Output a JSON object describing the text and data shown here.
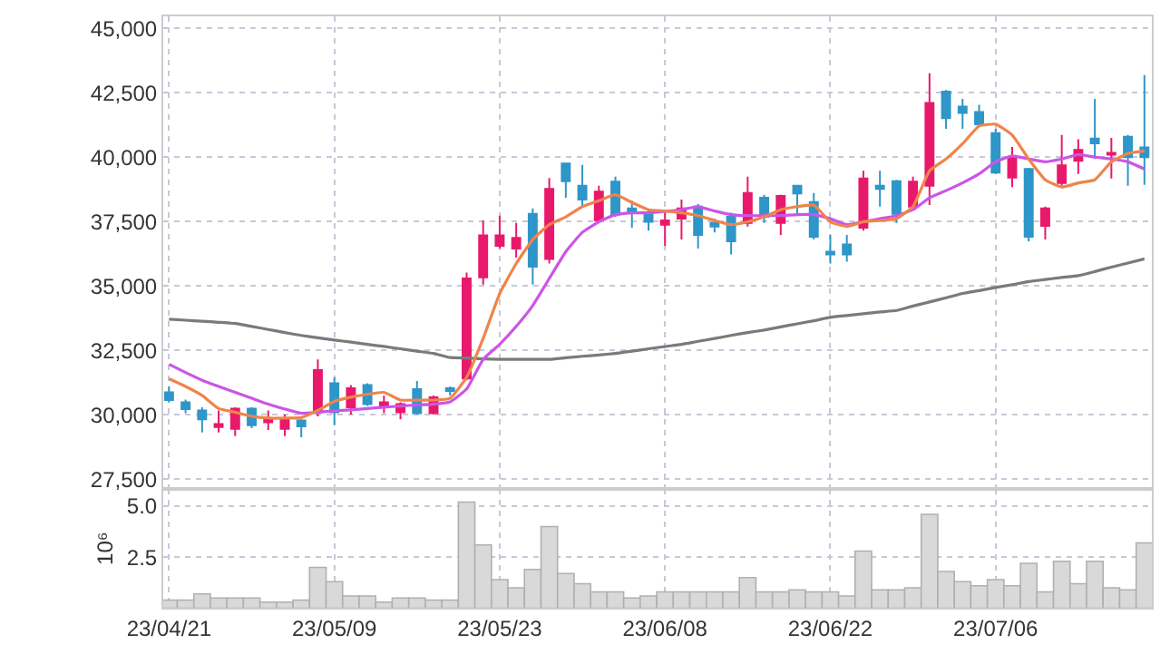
{
  "chart_data": [
    {
      "type": "candlestick",
      "tick_labels": "y",
      "grid": true,
      "ylim": [
        27130,
        45460
      ],
      "categories": [
        null,
        null,
        null,
        null,
        null,
        null,
        null,
        null,
        null,
        null,
        null,
        null,
        null,
        null,
        null,
        null,
        null,
        null,
        null,
        null,
        null,
        null,
        null,
        null,
        null,
        null,
        null,
        null,
        null,
        null,
        null,
        null,
        null,
        null,
        null,
        null,
        null,
        null,
        null,
        null,
        null,
        null,
        null,
        null,
        null,
        null,
        null,
        null,
        null,
        null,
        null,
        null,
        null,
        null,
        null,
        null,
        null,
        null,
        null,
        null
      ],
      "yticks": [
        {
          "value": 27500,
          "label": "27,500"
        },
        {
          "value": 30000,
          "label": "30,000"
        },
        {
          "value": 32500,
          "label": "32,500"
        },
        {
          "value": 35000,
          "label": "35,000"
        },
        {
          "value": 37500,
          "label": "37,500"
        },
        {
          "value": 40000,
          "label": "40,000"
        },
        {
          "value": 42500,
          "label": "42,500"
        },
        {
          "value": 45000,
          "label": "45,000"
        }
      ],
      "ohlc": [
        [
          30870,
          31100,
          30480,
          30570
        ],
        [
          30480,
          30590,
          30060,
          30220
        ],
        [
          30170,
          30290,
          29310,
          29820
        ],
        [
          29520,
          30170,
          29310,
          29640
        ],
        [
          29450,
          30290,
          29170,
          30240
        ],
        [
          30240,
          30290,
          29480,
          29590
        ],
        [
          29710,
          30170,
          29410,
          29820
        ],
        [
          29450,
          30010,
          29170,
          29820
        ],
        [
          29780,
          29820,
          29130,
          29550
        ],
        [
          30100,
          32150,
          29940,
          31730
        ],
        [
          31220,
          31450,
          29590,
          30100
        ],
        [
          30290,
          31150,
          30010,
          31030
        ],
        [
          31150,
          31220,
          30340,
          30410
        ],
        [
          30290,
          30750,
          30060,
          30480
        ],
        [
          30100,
          30480,
          29820,
          30410
        ],
        [
          30990,
          31310,
          30010,
          30060
        ],
        [
          30060,
          30750,
          30010,
          30680
        ],
        [
          31030,
          31100,
          30750,
          30920
        ],
        [
          31410,
          35520,
          31340,
          35290
        ],
        [
          35330,
          37540,
          35050,
          36960
        ],
        [
          36560,
          37730,
          36450,
          36960
        ],
        [
          36450,
          37450,
          36100,
          36870
        ],
        [
          37800,
          38010,
          35050,
          35750
        ],
        [
          36050,
          39190,
          35870,
          38770
        ],
        [
          39750,
          39750,
          38420,
          39070
        ],
        [
          38890,
          39700,
          38080,
          38350
        ],
        [
          37540,
          38890,
          37470,
          38660
        ],
        [
          39050,
          39240,
          37680,
          37770
        ],
        [
          38010,
          38310,
          37260,
          37890
        ],
        [
          37840,
          37960,
          37150,
          37490
        ],
        [
          37380,
          37840,
          36560,
          37540
        ],
        [
          37610,
          38350,
          36800,
          38010
        ],
        [
          38080,
          38190,
          36450,
          36980
        ],
        [
          37450,
          37610,
          37080,
          37310
        ],
        [
          37680,
          37840,
          36220,
          36730
        ],
        [
          37450,
          39240,
          37310,
          38610
        ],
        [
          38420,
          38540,
          37450,
          37680
        ],
        [
          37450,
          38540,
          36980,
          38490
        ],
        [
          38890,
          38930,
          37730,
          38590
        ],
        [
          38260,
          38610,
          36800,
          36910
        ],
        [
          36330,
          36980,
          35870,
          36220
        ],
        [
          36610,
          36980,
          35940,
          36220
        ],
        [
          37260,
          39470,
          37150,
          39170
        ],
        [
          38890,
          39470,
          38080,
          38770
        ],
        [
          39070,
          39120,
          37450,
          37800
        ],
        [
          38080,
          39240,
          37960,
          39050
        ],
        [
          38890,
          43260,
          38140,
          42100
        ],
        [
          42540,
          42610,
          41100,
          41510
        ],
        [
          41960,
          42260,
          41100,
          41720
        ],
        [
          41750,
          42030,
          41210,
          41280
        ],
        [
          40930,
          41100,
          39350,
          39400
        ],
        [
          39210,
          40400,
          38840,
          40000
        ],
        [
          39540,
          39590,
          36730,
          36910
        ],
        [
          37330,
          38080,
          36800,
          38010
        ],
        [
          39000,
          40860,
          38890,
          39680
        ],
        [
          39860,
          40700,
          39350,
          40280
        ],
        [
          40720,
          42260,
          39930,
          40540
        ],
        [
          40100,
          40750,
          39170,
          40170
        ],
        [
          40790,
          40860,
          38890,
          40000
        ],
        [
          40380,
          43190,
          38930,
          40000
        ]
      ],
      "colors": [
        "#2e96c8",
        "#2e96c8",
        "#2e96c8",
        "#e8196b",
        "#e8196b",
        "#2e96c8",
        "#e8196b",
        "#e8196b",
        "#2e96c8",
        "#e8196b",
        "#2e96c8",
        "#e8196b",
        "#2e96c8",
        "#e8196b",
        "#e8196b",
        "#2e96c8",
        "#e8196b",
        "#2e96c8",
        "#e8196b",
        "#e8196b",
        "#e8196b",
        "#e8196b",
        "#2e96c8",
        "#e8196b",
        "#2e96c8",
        "#2e96c8",
        "#e8196b",
        "#2e96c8",
        "#2e96c8",
        "#2e96c8",
        "#e8196b",
        "#e8196b",
        "#2e96c8",
        "#2e96c8",
        "#2e96c8",
        "#e8196b",
        "#2e96c8",
        "#e8196b",
        "#2e96c8",
        "#2e96c8",
        "#2e96c8",
        "#2e96c8",
        "#e8196b",
        "#2e96c8",
        "#2e96c8",
        "#e8196b",
        "#e8196b",
        "#2e96c8",
        "#2e96c8",
        "#2e96c8",
        "#2e96c8",
        "#e8196b",
        "#2e96c8",
        "#e8196b",
        "#e8196b",
        "#e8196b",
        "#2e96c8",
        "#e8196b",
        "#2e96c8",
        "#2e96c8"
      ],
      "series": [
        {
          "type": "line",
          "color": "#7a7a7a",
          "values": [
            33710,
            33670,
            33630,
            33590,
            33540,
            33430,
            33310,
            33190,
            33080,
            32990,
            32900,
            32820,
            32730,
            32650,
            32560,
            32470,
            32380,
            32220,
            32200,
            32170,
            32150,
            32150,
            32150,
            32150,
            32210,
            32270,
            32320,
            32380,
            32470,
            32560,
            32650,
            32730,
            32850,
            32960,
            33080,
            33190,
            33290,
            33410,
            33530,
            33650,
            33780,
            33850,
            33920,
            33990,
            34050,
            34220,
            34380,
            34540,
            34710,
            34820,
            34940,
            35050,
            35170,
            35250,
            35330,
            35400,
            35560,
            35730,
            35890,
            36050
          ]
        },
        {
          "type": "line",
          "color": "#cc55e6",
          "values": [
            31960,
            31640,
            31340,
            31100,
            30870,
            30640,
            30410,
            30220,
            30060,
            30100,
            30150,
            30190,
            30240,
            30290,
            30340,
            30380,
            30410,
            30500,
            31000,
            32150,
            32730,
            33430,
            34240,
            35290,
            36330,
            37080,
            37490,
            37770,
            37840,
            37840,
            37890,
            37960,
            38080,
            37910,
            37770,
            37730,
            37730,
            37730,
            37770,
            37770,
            37610,
            37380,
            37490,
            37610,
            37730,
            37960,
            38420,
            38700,
            39000,
            39350,
            39820,
            40050,
            39930,
            39820,
            39930,
            40100,
            40000,
            39930,
            39820,
            39540
          ]
        },
        {
          "type": "line",
          "color": "#f0844a",
          "values": [
            31400,
            31100,
            30750,
            30240,
            30100,
            29940,
            29870,
            29870,
            29890,
            30170,
            30520,
            30680,
            30800,
            30870,
            30570,
            30570,
            30570,
            30640,
            31450,
            32960,
            34700,
            35870,
            36800,
            37380,
            37680,
            38080,
            38310,
            38540,
            38240,
            37960,
            37910,
            37840,
            37730,
            37540,
            37380,
            37490,
            37680,
            37960,
            38080,
            38140,
            37490,
            37310,
            37490,
            37540,
            37610,
            38080,
            39470,
            39930,
            40520,
            41210,
            41280,
            40860,
            39930,
            39120,
            38840,
            39000,
            39120,
            39820,
            40140,
            40240
          ]
        }
      ]
    },
    {
      "type": "bar",
      "color": "#d9d9d9",
      "ylabel": "10⁶",
      "grid": true,
      "ylim": [
        0,
        5.86
      ],
      "yticks": [
        2.5,
        {
          "value": 5,
          "label": "5.0"
        }
      ],
      "categories": [
        "23/04/21",
        null,
        null,
        null,
        null,
        null,
        null,
        null,
        null,
        null,
        "23/05/09",
        null,
        null,
        null,
        null,
        null,
        null,
        null,
        null,
        null,
        "23/05/23",
        null,
        null,
        null,
        null,
        null,
        null,
        null,
        null,
        null,
        "23/06/08",
        null,
        null,
        null,
        null,
        null,
        null,
        null,
        null,
        null,
        "23/06/22",
        null,
        null,
        null,
        null,
        null,
        null,
        null,
        null,
        null,
        "23/07/06",
        null,
        null,
        null,
        null,
        null,
        null,
        null,
        null,
        null
      ],
      "values": [
        0.4,
        0.4,
        0.7,
        0.5,
        0.5,
        0.5,
        0.3,
        0.3,
        0.4,
        2.0,
        1.3,
        0.6,
        0.6,
        0.3,
        0.5,
        0.5,
        0.4,
        0.4,
        5.2,
        3.1,
        1.4,
        1.0,
        1.9,
        4.0,
        1.7,
        1.2,
        0.8,
        0.8,
        0.5,
        0.6,
        0.8,
        0.8,
        0.8,
        0.8,
        0.8,
        1.5,
        0.8,
        0.8,
        0.9,
        0.8,
        0.8,
        0.6,
        2.8,
        0.9,
        0.9,
        1.0,
        4.6,
        1.8,
        1.3,
        1.1,
        1.4,
        1.1,
        2.2,
        0.8,
        2.3,
        1.2,
        2.3,
        1.0,
        0.9,
        3.2
      ]
    }
  ]
}
